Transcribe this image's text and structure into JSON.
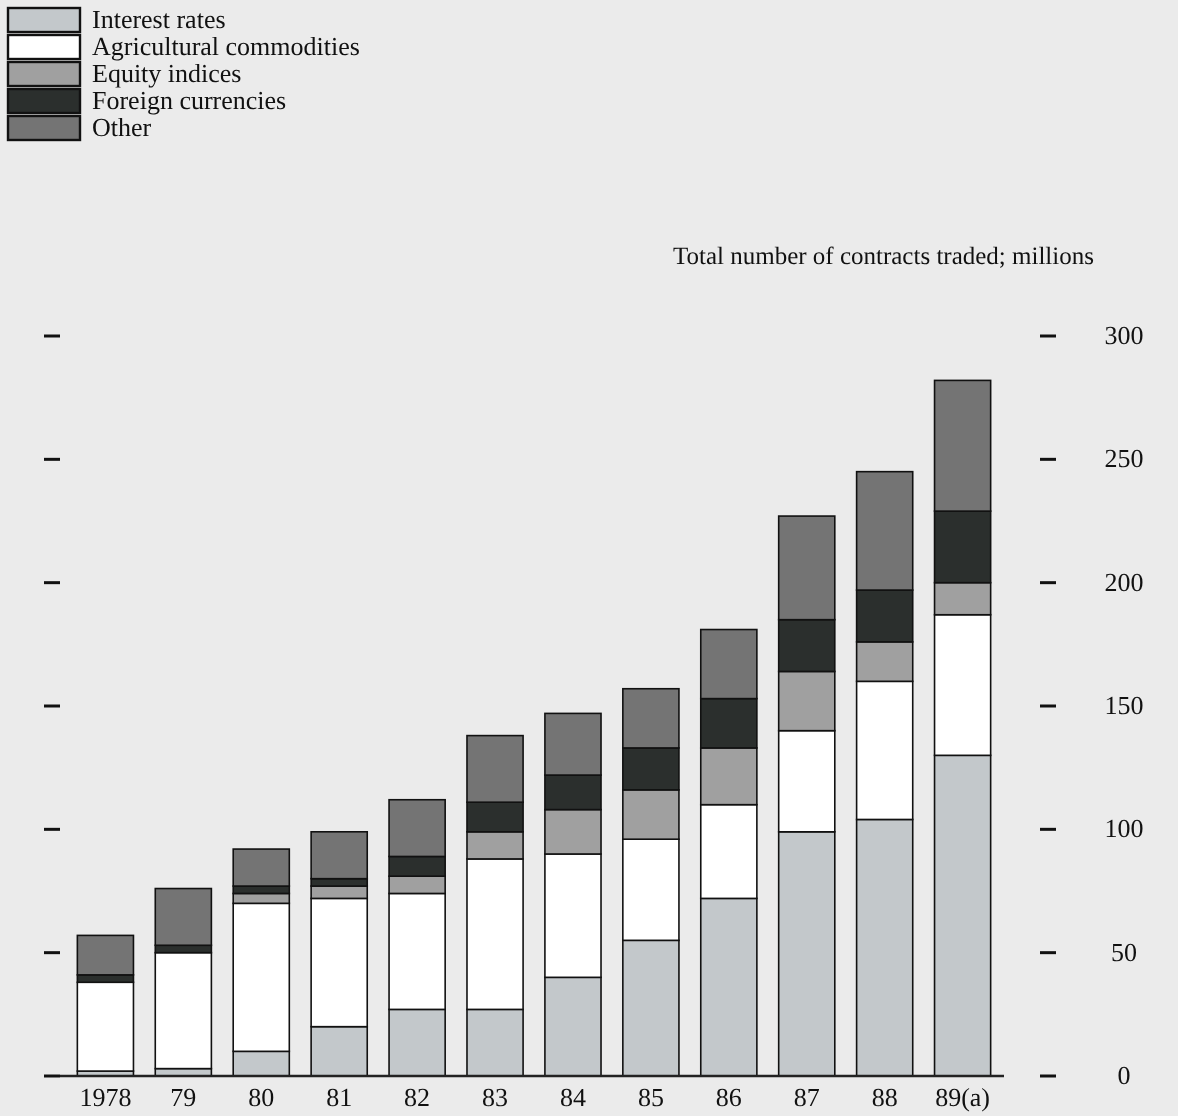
{
  "chart_data": {
    "type": "bar",
    "stacked": true,
    "ylabel": "Total number of contracts traded; millions",
    "categories": [
      "1978",
      "79",
      "80",
      "81",
      "82",
      "83",
      "84",
      "85",
      "86",
      "87",
      "88",
      "89(a)"
    ],
    "series": [
      {
        "name": "Interest rates",
        "color": "#c3c8cb",
        "values": [
          2,
          3,
          10,
          20,
          27,
          27,
          40,
          55,
          72,
          99,
          104,
          130
        ]
      },
      {
        "name": "Agricultural commodities",
        "color": "#ffffff",
        "values": [
          36,
          47,
          60,
          52,
          47,
          61,
          50,
          41,
          38,
          41,
          56,
          57
        ]
      },
      {
        "name": "Equity indices",
        "color": "#a0a0a0",
        "values": [
          0,
          0,
          4,
          5,
          7,
          11,
          18,
          20,
          23,
          24,
          16,
          13
        ]
      },
      {
        "name": "Foreign currencies",
        "color": "#2b2f2d",
        "values": [
          3,
          3,
          3,
          3,
          8,
          12,
          14,
          17,
          20,
          21,
          21,
          29
        ]
      },
      {
        "name": "Other",
        "color": "#747474",
        "values": [
          16,
          23,
          15,
          19,
          23,
          27,
          25,
          24,
          28,
          42,
          48,
          53
        ]
      }
    ],
    "ylim": [
      0,
      300
    ],
    "yticks": [
      0,
      50,
      100,
      150,
      200,
      250,
      300
    ],
    "legend": "top left",
    "grid": false
  }
}
